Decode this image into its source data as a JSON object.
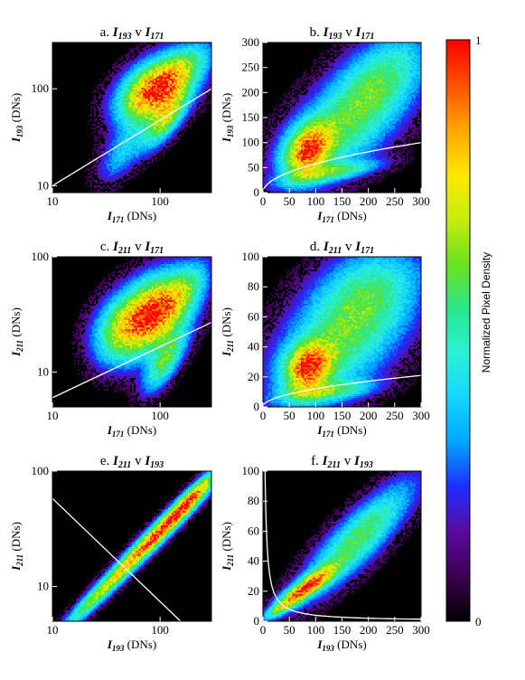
{
  "figure": {
    "colorbar": {
      "label": "Normalized Pixel Density",
      "min_label": "0",
      "max_label": "1",
      "stops": [
        "#000000",
        "#3d0050",
        "#5a0aa0",
        "#1f2dff",
        "#00a6ff",
        "#16d6ff",
        "#2cf0d6",
        "#29e68c",
        "#6be21d",
        "#c8ec0f",
        "#ffe700",
        "#ffa500",
        "#ff5000",
        "#ff0000"
      ]
    }
  },
  "chart_data": [
    {
      "id": "a",
      "type": "heatmap",
      "title": {
        "prefix": "a.",
        "y": "I",
        "ysub": "193",
        "mid": "v",
        "x": "I",
        "xsub": "171"
      },
      "xlabel": {
        "sym": "I",
        "sub": "171",
        "unit": "(DNs)"
      },
      "ylabel": {
        "sym": "I",
        "sub": "193",
        "unit": "(DNs)"
      },
      "xscale": "log",
      "yscale": "log",
      "xlim": [
        10,
        300
      ],
      "ylim": [
        8.5,
        300
      ],
      "xticks": [
        10,
        100
      ],
      "yticks": [
        10,
        100
      ],
      "curve": {
        "form": "y = x^p * c",
        "points": [
          [
            10,
            10
          ],
          [
            300,
            100
          ]
        ]
      },
      "clusters": [
        {
          "x": 90,
          "y": 95,
          "sx": 0.22,
          "sy": 0.22,
          "rho": 0.4,
          "w": 1.0
        },
        {
          "x": 110,
          "y": 45,
          "sx": 0.13,
          "sy": 0.18,
          "rho": 0.7,
          "w": 0.45
        },
        {
          "x": 45,
          "y": 22,
          "sx": 0.15,
          "sy": 0.2,
          "rho": 0.6,
          "w": 0.25
        },
        {
          "x": 180,
          "y": 180,
          "sx": 0.18,
          "sy": 0.18,
          "rho": 0.5,
          "w": 0.3
        }
      ]
    },
    {
      "id": "b",
      "type": "heatmap",
      "title": {
        "prefix": "b.",
        "y": "I",
        "ysub": "193",
        "mid": "v",
        "x": "I",
        "xsub": "171"
      },
      "xlabel": {
        "sym": "I",
        "sub": "171",
        "unit": "(DNs)"
      },
      "ylabel": {
        "sym": "I",
        "sub": "193",
        "unit": "(DNs)"
      },
      "xscale": "linear",
      "yscale": "linear",
      "xlim": [
        0,
        300
      ],
      "ylim": [
        0,
        300
      ],
      "xticks": [
        0,
        50,
        100,
        150,
        200,
        250,
        300
      ],
      "yticks": [
        0,
        50,
        100,
        150,
        200,
        250,
        300
      ],
      "curve": {
        "form": "sqrt",
        "a": 5.77
      },
      "clusters": [
        {
          "x": 85,
          "y": 85,
          "sx": 30,
          "sy": 35,
          "rho": 0.3,
          "w": 1.0
        },
        {
          "x": 160,
          "y": 140,
          "sx": 80,
          "sy": 80,
          "rho": 0.6,
          "w": 0.55
        },
        {
          "x": 230,
          "y": 240,
          "sx": 60,
          "sy": 60,
          "rho": 0.5,
          "w": 0.35
        },
        {
          "x": 130,
          "y": 40,
          "sx": 60,
          "sy": 15,
          "rho": 0.7,
          "w": 0.45
        }
      ]
    },
    {
      "id": "c",
      "type": "heatmap",
      "title": {
        "prefix": "c.",
        "y": "I",
        "ysub": "211",
        "mid": "v",
        "x": "I",
        "xsub": "171"
      },
      "xlabel": {
        "sym": "I",
        "sub": "171",
        "unit": "(DNs)"
      },
      "ylabel": {
        "sym": "I",
        "sub": "211",
        "unit": "(DNs)"
      },
      "xscale": "log",
      "yscale": "log",
      "xlim": [
        10,
        300
      ],
      "ylim": [
        5,
        100
      ],
      "xticks": [
        10,
        100
      ],
      "yticks": [
        10,
        100
      ],
      "curve": {
        "form": "y = x^p * c",
        "points": [
          [
            10,
            6
          ],
          [
            300,
            27
          ]
        ]
      },
      "clusters": [
        {
          "x": 85,
          "y": 32,
          "sx": 0.22,
          "sy": 0.22,
          "rho": 0.35,
          "w": 1.0
        },
        {
          "x": 110,
          "y": 12,
          "sx": 0.13,
          "sy": 0.17,
          "rho": 0.7,
          "w": 0.45
        },
        {
          "x": 40,
          "y": 22,
          "sx": 0.17,
          "sy": 0.2,
          "rho": 0.2,
          "w": 0.35
        },
        {
          "x": 180,
          "y": 55,
          "sx": 0.15,
          "sy": 0.17,
          "rho": 0.5,
          "w": 0.3
        }
      ]
    },
    {
      "id": "d",
      "type": "heatmap",
      "title": {
        "prefix": "d.",
        "y": "I",
        "ysub": "211",
        "mid": "v",
        "x": "I",
        "xsub": "171"
      },
      "xlabel": {
        "sym": "I",
        "sub": "171",
        "unit": "(DNs)"
      },
      "ylabel": {
        "sym": "I",
        "sub": "211",
        "unit": "(DNs)"
      },
      "xscale": "linear",
      "yscale": "linear",
      "xlim": [
        0,
        300
      ],
      "ylim": [
        0,
        100
      ],
      "xticks": [
        0,
        50,
        100,
        150,
        200,
        250,
        300
      ],
      "yticks": [
        0,
        20,
        40,
        60,
        80,
        100
      ],
      "curve": {
        "form": "sqrt",
        "a": 1.21
      },
      "clusters": [
        {
          "x": 85,
          "y": 26,
          "sx": 30,
          "sy": 11,
          "rho": 0.2,
          "w": 1.0
        },
        {
          "x": 150,
          "y": 45,
          "sx": 85,
          "sy": 28,
          "rho": 0.5,
          "w": 0.6
        },
        {
          "x": 200,
          "y": 80,
          "sx": 70,
          "sy": 20,
          "rho": 0.3,
          "w": 0.35
        },
        {
          "x": 120,
          "y": 10,
          "sx": 60,
          "sy": 5,
          "rho": 0.5,
          "w": 0.45
        }
      ]
    },
    {
      "id": "e",
      "type": "heatmap",
      "title": {
        "prefix": "e.",
        "y": "I",
        "ysub": "211",
        "mid": "v",
        "x": "I",
        "xsub": "193"
      },
      "xlabel": {
        "sym": "I",
        "sub": "193",
        "unit": "(DNs)"
      },
      "ylabel": {
        "sym": "I",
        "sub": "211",
        "unit": "(DNs)"
      },
      "xscale": "log",
      "yscale": "log",
      "xlim": [
        10,
        300
      ],
      "ylim": [
        5,
        100
      ],
      "xticks": [
        10,
        100
      ],
      "yticks": [
        10,
        100
      ],
      "curve": {
        "form": "y = x^p * c",
        "points": [
          [
            10,
            58
          ],
          [
            155,
            5
          ]
        ]
      },
      "clusters": [
        {
          "x": 100,
          "y": 30,
          "sx": 0.32,
          "sy": 0.3,
          "rho": 0.97,
          "w": 1.0
        },
        {
          "x": 25,
          "y": 8,
          "sx": 0.25,
          "sy": 0.23,
          "rho": 0.96,
          "w": 0.45
        },
        {
          "x": 200,
          "y": 60,
          "sx": 0.15,
          "sy": 0.15,
          "rho": 0.9,
          "w": 0.4
        }
      ]
    },
    {
      "id": "f",
      "type": "heatmap",
      "title": {
        "prefix": "f.",
        "y": "I",
        "ysub": "211",
        "mid": "v",
        "x": "I",
        "xsub": "193"
      },
      "xlabel": {
        "sym": "I",
        "sub": "193",
        "unit": "(DNs)"
      },
      "ylabel": {
        "sym": "I",
        "sub": "211",
        "unit": "(DNs)"
      },
      "xscale": "linear",
      "yscale": "linear",
      "xlim": [
        0,
        300
      ],
      "ylim": [
        0,
        100
      ],
      "xticks": [
        0,
        50,
        100,
        150,
        200,
        250,
        300
      ],
      "yticks": [
        0,
        20,
        40,
        60,
        80,
        100
      ],
      "curve": {
        "form": "hyperbola",
        "a": 400
      },
      "clusters": [
        {
          "x": 80,
          "y": 22,
          "sx": 35,
          "sy": 9,
          "rho": 0.85,
          "w": 1.0
        },
        {
          "x": 180,
          "y": 55,
          "sx": 70,
          "sy": 25,
          "rho": 0.85,
          "w": 0.55
        },
        {
          "x": 30,
          "y": 8,
          "sx": 20,
          "sy": 5,
          "rho": 0.8,
          "w": 0.4
        }
      ]
    }
  ]
}
